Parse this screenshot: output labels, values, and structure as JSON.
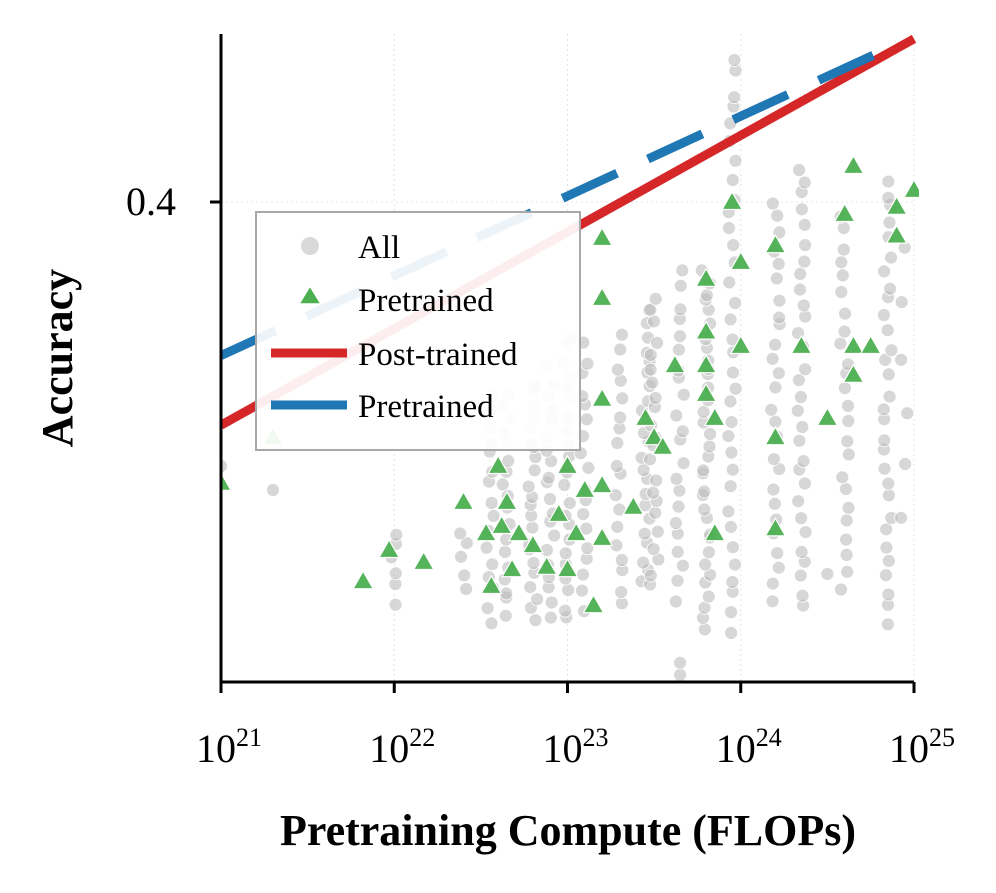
{
  "chart_data": {
    "type": "scatter",
    "title": "",
    "xlabel": "Pretraining Compute (FLOPs)",
    "ylabel": "Accuracy",
    "xscale": "log",
    "xlim_exp": [
      21,
      25
    ],
    "ylim": [
      0.2,
      0.47
    ],
    "x_ticks": [
      {
        "base": "10",
        "exp": "21",
        "value": 21
      },
      {
        "base": "10",
        "exp": "22",
        "value": 22
      },
      {
        "base": "10",
        "exp": "23",
        "value": 23
      },
      {
        "base": "10",
        "exp": "24",
        "value": 24
      },
      {
        "base": "10",
        "exp": "25",
        "value": 25
      }
    ],
    "y_ticks": [
      {
        "label": "0.4",
        "value": 0.4
      }
    ],
    "legend": {
      "placement": "center-left",
      "entries": [
        "All",
        "Pretrained",
        "Post-trained",
        "Pretrained"
      ]
    },
    "series": [
      {
        "name": "All",
        "kind": "scatter",
        "marker": "circle",
        "color": "#bdbdbd",
        "columns": [
          {
            "x": 22.0,
            "ymin": 0.233,
            "ymax": 0.262,
            "n": 6
          },
          {
            "x": 22.4,
            "ymin": 0.24,
            "ymax": 0.262,
            "n": 5
          },
          {
            "x": 22.55,
            "ymin": 0.225,
            "ymax": 0.32,
            "n": 16
          },
          {
            "x": 22.65,
            "ymin": 0.228,
            "ymax": 0.32,
            "n": 18
          },
          {
            "x": 22.8,
            "ymin": 0.225,
            "ymax": 0.325,
            "n": 22
          },
          {
            "x": 22.9,
            "ymin": 0.228,
            "ymax": 0.33,
            "n": 20
          },
          {
            "x": 23.0,
            "ymin": 0.225,
            "ymax": 0.345,
            "n": 22
          },
          {
            "x": 23.1,
            "ymin": 0.23,
            "ymax": 0.34,
            "n": 18
          },
          {
            "x": 23.3,
            "ymin": 0.232,
            "ymax": 0.345,
            "n": 18
          },
          {
            "x": 23.45,
            "ymin": 0.24,
            "ymax": 0.355,
            "n": 22
          },
          {
            "x": 23.5,
            "ymin": 0.24,
            "ymax": 0.36,
            "n": 22
          },
          {
            "x": 23.65,
            "ymin": 0.235,
            "ymax": 0.37,
            "n": 22
          },
          {
            "x": 23.8,
            "ymin": 0.222,
            "ymax": 0.372,
            "n": 34
          },
          {
            "x": 23.95,
            "ymin": 0.222,
            "ymax": 0.46,
            "n": 34
          },
          {
            "x": 24.2,
            "ymin": 0.235,
            "ymax": 0.4,
            "n": 26
          },
          {
            "x": 24.35,
            "ymin": 0.23,
            "ymax": 0.415,
            "n": 30
          },
          {
            "x": 24.6,
            "ymin": 0.24,
            "ymax": 0.395,
            "n": 24
          },
          {
            "x": 24.85,
            "ymin": 0.225,
            "ymax": 0.41,
            "n": 30
          },
          {
            "x": 24.95,
            "ymin": 0.27,
            "ymax": 0.38,
            "n": 6
          }
        ],
        "outliers": [
          {
            "x": 21.0,
            "y": 0.29
          },
          {
            "x": 21.3,
            "y": 0.28
          },
          {
            "x": 21.3,
            "y": 0.3
          },
          {
            "x": 23.65,
            "y": 0.203
          },
          {
            "x": 23.65,
            "y": 0.208
          },
          {
            "x": 24.5,
            "y": 0.245
          }
        ]
      },
      {
        "name": "Pretrained",
        "kind": "scatter",
        "marker": "triangle",
        "color": "#4caf50",
        "points": [
          {
            "x": 21.0,
            "y": 0.283
          },
          {
            "x": 21.3,
            "y": 0.302
          },
          {
            "x": 21.82,
            "y": 0.242
          },
          {
            "x": 21.97,
            "y": 0.255
          },
          {
            "x": 22.17,
            "y": 0.25
          },
          {
            "x": 22.4,
            "y": 0.275
          },
          {
            "x": 22.53,
            "y": 0.262
          },
          {
            "x": 22.56,
            "y": 0.24
          },
          {
            "x": 22.6,
            "y": 0.29
          },
          {
            "x": 22.62,
            "y": 0.265
          },
          {
            "x": 22.65,
            "y": 0.275
          },
          {
            "x": 22.68,
            "y": 0.247
          },
          {
            "x": 22.72,
            "y": 0.262
          },
          {
            "x": 22.8,
            "y": 0.257
          },
          {
            "x": 22.88,
            "y": 0.248
          },
          {
            "x": 22.95,
            "y": 0.27
          },
          {
            "x": 23.0,
            "y": 0.29
          },
          {
            "x": 23.05,
            "y": 0.262
          },
          {
            "x": 23.0,
            "y": 0.247
          },
          {
            "x": 23.1,
            "y": 0.28
          },
          {
            "x": 23.15,
            "y": 0.232
          },
          {
            "x": 23.2,
            "y": 0.36
          },
          {
            "x": 23.2,
            "y": 0.385
          },
          {
            "x": 23.2,
            "y": 0.318
          },
          {
            "x": 23.2,
            "y": 0.282
          },
          {
            "x": 23.2,
            "y": 0.26
          },
          {
            "x": 23.38,
            "y": 0.273
          },
          {
            "x": 23.45,
            "y": 0.31
          },
          {
            "x": 23.5,
            "y": 0.302
          },
          {
            "x": 23.55,
            "y": 0.298
          },
          {
            "x": 23.62,
            "y": 0.332
          },
          {
            "x": 23.8,
            "y": 0.346
          },
          {
            "x": 23.8,
            "y": 0.332
          },
          {
            "x": 23.8,
            "y": 0.368
          },
          {
            "x": 23.8,
            "y": 0.32
          },
          {
            "x": 23.85,
            "y": 0.31
          },
          {
            "x": 23.85,
            "y": 0.262
          },
          {
            "x": 23.95,
            "y": 0.4
          },
          {
            "x": 24.0,
            "y": 0.375
          },
          {
            "x": 24.0,
            "y": 0.34
          },
          {
            "x": 24.2,
            "y": 0.382
          },
          {
            "x": 24.2,
            "y": 0.302
          },
          {
            "x": 24.2,
            "y": 0.264
          },
          {
            "x": 24.35,
            "y": 0.34
          },
          {
            "x": 24.5,
            "y": 0.31
          },
          {
            "x": 24.6,
            "y": 0.395
          },
          {
            "x": 24.65,
            "y": 0.415
          },
          {
            "x": 24.65,
            "y": 0.34
          },
          {
            "x": 24.65,
            "y": 0.328
          },
          {
            "x": 24.75,
            "y": 0.34
          },
          {
            "x": 24.9,
            "y": 0.398
          },
          {
            "x": 24.9,
            "y": 0.386
          },
          {
            "x": 25.0,
            "y": 0.405
          }
        ]
      },
      {
        "name": "Post-trained",
        "kind": "line",
        "style": "solid",
        "color": "#d62728",
        "x": [
          21,
          25
        ],
        "y": [
          0.307,
          0.468
        ]
      },
      {
        "name": "Pretrained",
        "kind": "line",
        "style": "dashed",
        "color": "#1f77b4",
        "x": [
          21,
          24.85
        ],
        "y": [
          0.336,
          0.464
        ]
      }
    ]
  }
}
